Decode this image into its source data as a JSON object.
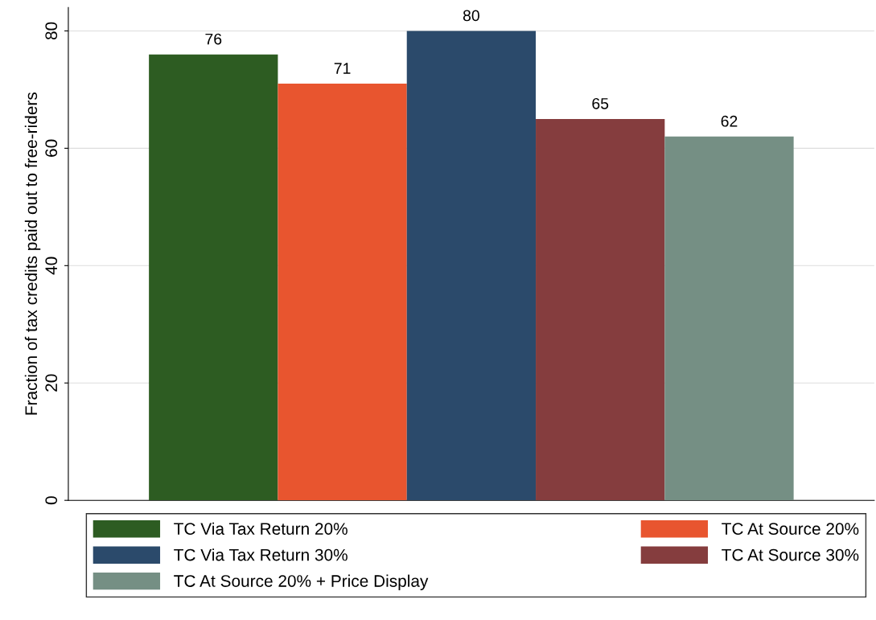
{
  "chart_data": {
    "type": "bar",
    "ylabel": "Fraction of tax credits paid out to free-riders",
    "categories": [
      null
    ],
    "series": [
      {
        "name": "TC Via Tax Return 20%",
        "color": "#2d5c22",
        "values": [
          76
        ]
      },
      {
        "name": "TC At Source 20%",
        "color": "#e8552f",
        "values": [
          71
        ]
      },
      {
        "name": "TC Via Tax Return 30%",
        "color": "#2b4a6b",
        "values": [
          80
        ]
      },
      {
        "name": "TC At Source 30%",
        "color": "#853d3e",
        "values": [
          65
        ]
      },
      {
        "name": "TC At Source 20% + Price Display",
        "color": "#758f84",
        "values": [
          62
        ]
      }
    ],
    "ylim": [
      0,
      84
    ],
    "yticks": [
      0,
      20,
      40,
      60,
      80
    ],
    "grid": "y",
    "legend": "bottom",
    "data_labels": true
  }
}
